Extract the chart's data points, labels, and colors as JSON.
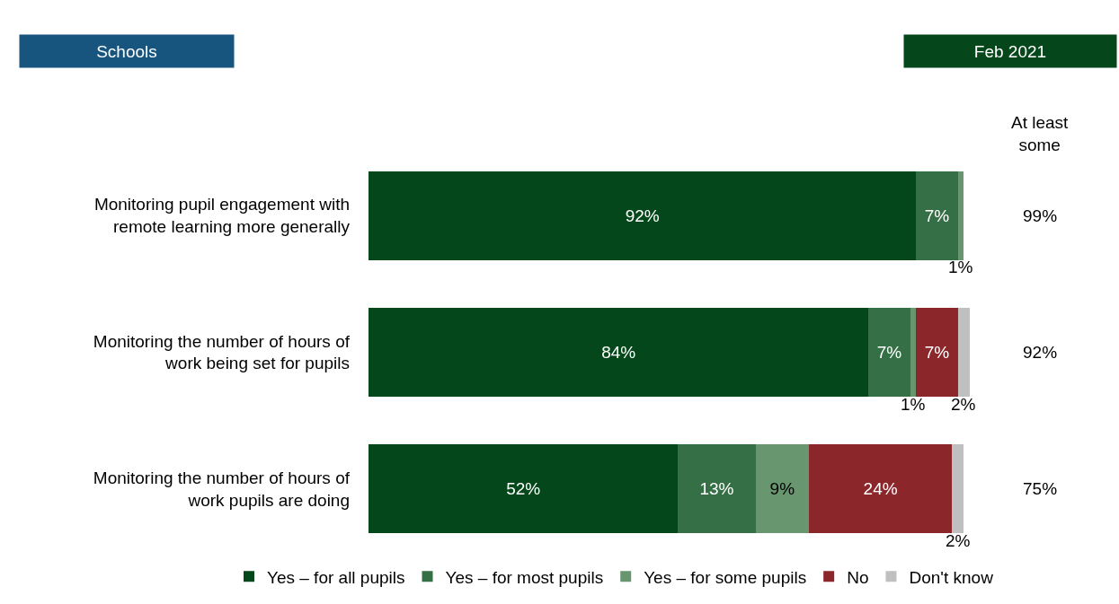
{
  "chart_data": {
    "type": "bar",
    "orientation": "horizontal",
    "stacked": true,
    "title": "Schools",
    "subtitle": "Feb 2021",
    "categories": [
      "Monitoring pupil engagement with\nremote learning more generally",
      "Monitoring the number of hours of\nwork being set for pupils",
      "Monitoring the number of hours of\nwork pupils are doing"
    ],
    "series": [
      {
        "name": "Yes – for all pupils",
        "color": "#04471a",
        "values": [
          92,
          84,
          52
        ],
        "value_labels": [
          "92%",
          "84%",
          "52%"
        ]
      },
      {
        "name": "Yes – for most pupils",
        "color": "#356f45",
        "values": [
          7,
          7,
          13
        ],
        "value_labels": [
          "7%",
          "7%",
          "13%"
        ]
      },
      {
        "name": "Yes – for some pupils",
        "color": "#67966f",
        "values": [
          1,
          1,
          9
        ],
        "value_labels": [
          "1%",
          "1%",
          "9%"
        ]
      },
      {
        "name": "No",
        "color": "#8b272b",
        "values": [
          null,
          7,
          24
        ],
        "value_labels": [
          null,
          "7%",
          "24%"
        ]
      },
      {
        "name": "Don't know",
        "color": "#c0c0c0",
        "values": [
          null,
          2,
          2
        ],
        "value_labels": [
          null,
          "2%",
          "2%"
        ]
      }
    ],
    "xlim": [
      0,
      101
    ],
    "tick_labels": "y",
    "annotations": [
      "At least some",
      "99%",
      "92%",
      "75%"
    ],
    "legend": "bottom"
  }
}
